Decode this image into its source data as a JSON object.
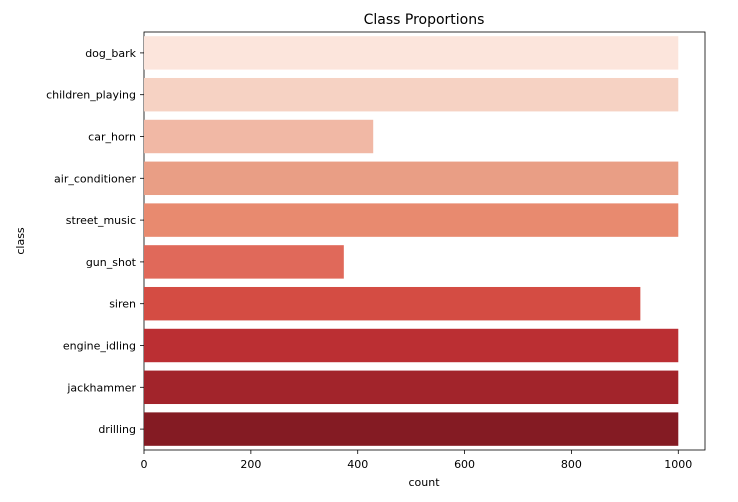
{
  "chart_data": {
    "type": "bar",
    "orientation": "horizontal",
    "title": "Class Proportions",
    "xlabel": "count",
    "ylabel": "class",
    "xlim": [
      0,
      1050
    ],
    "xticks": [
      0,
      200,
      400,
      600,
      800,
      1000
    ],
    "grid": false,
    "categories": [
      "dog_bark",
      "children_playing",
      "car_horn",
      "air_conditioner",
      "street_music",
      "gun_shot",
      "siren",
      "engine_idling",
      "jackhammer",
      "drilling"
    ],
    "values": [
      1000,
      1000,
      429,
      1000,
      1000,
      374,
      929,
      1000,
      1000,
      1000
    ],
    "colors": [
      "#fce5dc",
      "#f6d2c3",
      "#f1b8a5",
      "#e99e85",
      "#e88a6f",
      "#e0695a",
      "#d44c43",
      "#bb2f33",
      "#a2242b",
      "#841b23"
    ]
  }
}
